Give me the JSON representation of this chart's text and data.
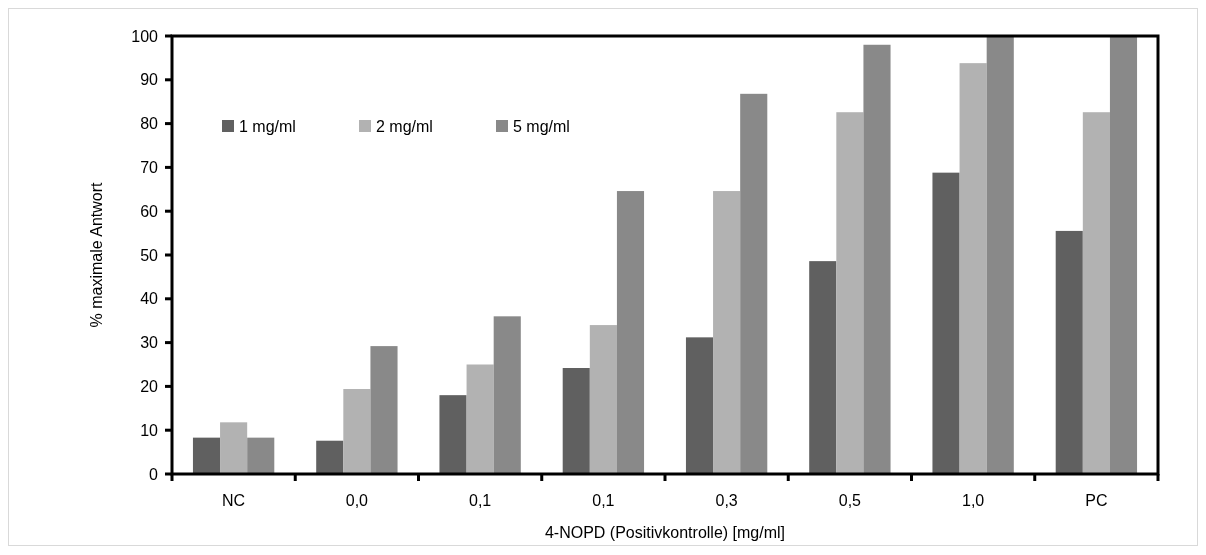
{
  "chart_data": {
    "type": "bar",
    "xlabel": "4-NOPD (Positivkontrolle) [mg/ml]",
    "ylabel": "% maximale Antwort",
    "categories": [
      "NC",
      "0,0",
      "0,1",
      "0,1",
      "0,3",
      "0,5",
      "1,0",
      "PC"
    ],
    "series": [
      {
        "name": "1 mg/ml",
        "color": "#606060",
        "values": [
          8.3,
          7.6,
          18,
          24.2,
          31.2,
          48.6,
          68.8,
          55.5
        ]
      },
      {
        "name": "2 mg/ml",
        "color": "#b2b2b2",
        "values": [
          11.8,
          19.4,
          25,
          34,
          64.6,
          82.6,
          93.8,
          82.6
        ]
      },
      {
        "name": "5 mg/ml",
        "color": "#898989",
        "values": [
          8.3,
          29.2,
          36,
          64.6,
          86.8,
          98,
          100,
          100
        ]
      }
    ],
    "ylim": [
      0,
      100
    ],
    "yticks": [
      0,
      10,
      20,
      30,
      40,
      50,
      60,
      70,
      80,
      90,
      100
    ],
    "grid": false,
    "legend": "top left"
  }
}
